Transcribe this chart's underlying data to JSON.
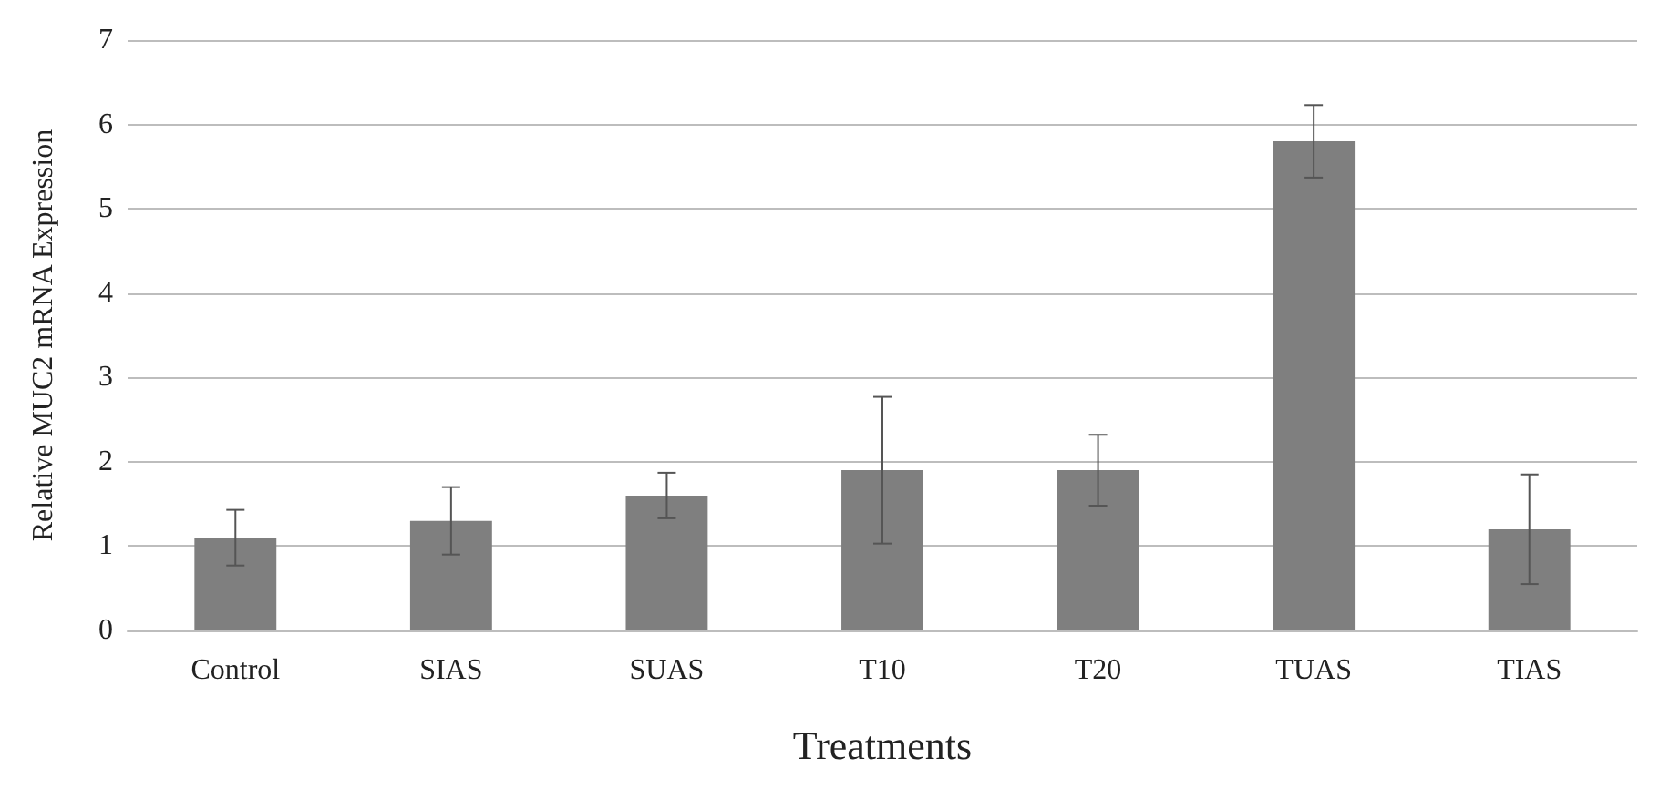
{
  "chart_data": {
    "type": "bar",
    "xlabel": "Treatments",
    "ylabel": "Relative MUC2 mRNA Expression",
    "categories": [
      "Control",
      "SIAS",
      "SUAS",
      "T10",
      "T20",
      "TUAS",
      "TIAS"
    ],
    "values": [
      1.1,
      1.3,
      1.6,
      1.9,
      1.9,
      5.8,
      1.2
    ],
    "errors": [
      0.33,
      0.4,
      0.27,
      0.87,
      0.42,
      0.43,
      0.65
    ],
    "color": "#7f7f7f",
    "ylim": [
      0,
      7
    ],
    "yticks": [
      0,
      1,
      2,
      3,
      4,
      5,
      6,
      7
    ],
    "grid": "y"
  }
}
